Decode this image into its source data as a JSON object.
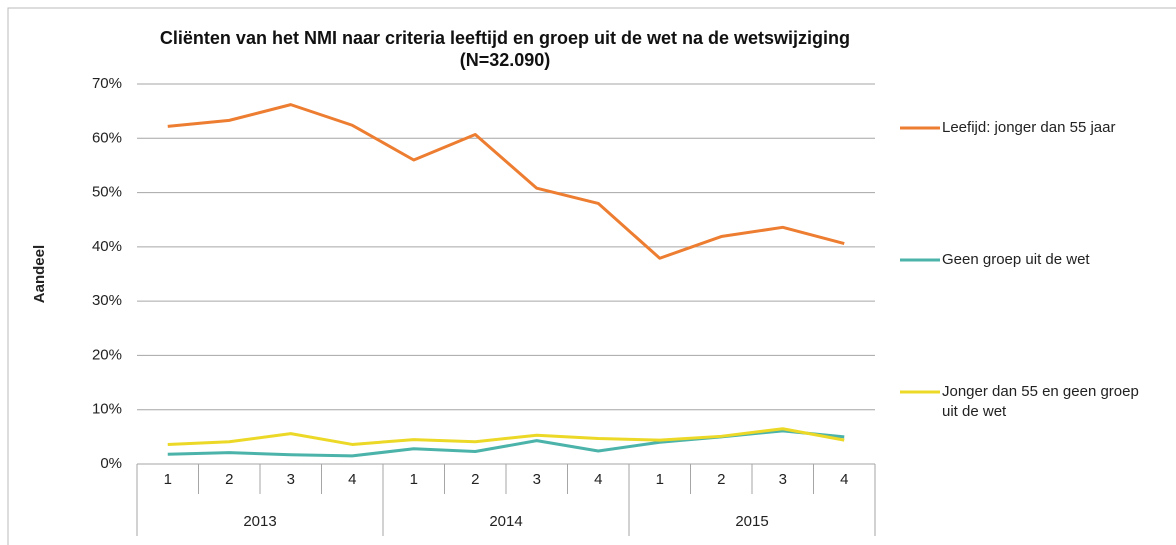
{
  "chart_data": {
    "type": "line",
    "title": [
      "Cliënten van het NMI naar criteria leeftijd en groep uit de wet na de wetswijziging",
      "(N=32.090)"
    ],
    "y_label": "Aandeel",
    "categories": [
      "1",
      "2",
      "3",
      "4",
      "1",
      "2",
      "3",
      "4",
      "1",
      "2",
      "3",
      "4"
    ],
    "groups": [
      "2013",
      "2014",
      "2015"
    ],
    "series": [
      {
        "name": "Leefijd: jonger dan 55 jaar",
        "color": "#ed7d31",
        "values": [
          62.2,
          63.3,
          66.2,
          62.4,
          56.0,
          60.7,
          50.8,
          48.0,
          37.9,
          41.9,
          43.6,
          40.6
        ]
      },
      {
        "name": "Geen groep uit de wet",
        "color": "#4bb3a9",
        "values": [
          1.8,
          2.1,
          1.7,
          1.5,
          2.8,
          2.3,
          4.3,
          2.4,
          4.0,
          5.0,
          6.1,
          5.0
        ]
      },
      {
        "name": "Jonger dan 55 en geen groep uit de wet",
        "color": "#ecd827",
        "values": [
          3.6,
          4.1,
          5.6,
          3.6,
          4.5,
          4.1,
          5.3,
          4.7,
          4.4,
          5.1,
          6.5,
          4.4
        ]
      }
    ],
    "ylim": [
      0,
      70
    ],
    "yticks": [
      {
        "value": 0,
        "label": "0%"
      },
      {
        "value": 10,
        "label": "10%"
      },
      {
        "value": 20,
        "label": "20%"
      },
      {
        "value": 30,
        "label": "30%"
      },
      {
        "value": 40,
        "label": "40%"
      },
      {
        "value": 50,
        "label": "50%"
      },
      {
        "value": 60,
        "label": "60%"
      },
      {
        "value": 70,
        "label": "70%"
      }
    ],
    "grid": true,
    "legend": "right"
  }
}
